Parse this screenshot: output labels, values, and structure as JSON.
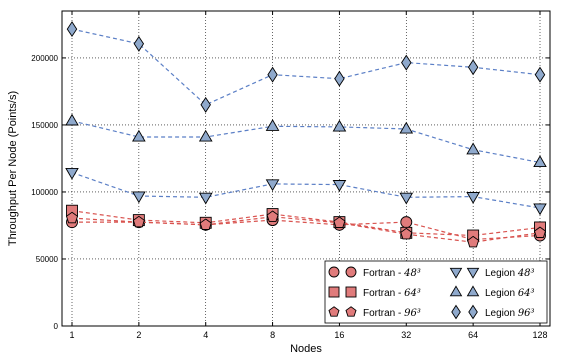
{
  "chart_data": {
    "type": "line",
    "xlabel": "Nodes",
    "ylabel": "Throughput Per Node (Points/s)",
    "x": [
      1,
      2,
      4,
      8,
      16,
      32,
      64,
      128
    ],
    "x_tick_labels": [
      "1",
      "2",
      "4",
      "8",
      "16",
      "32",
      "64",
      "128"
    ],
    "x_scale": "log2",
    "ylim": [
      0,
      235000
    ],
    "y_ticks": [
      0,
      50000,
      100000,
      150000,
      200000
    ],
    "y_tick_labels": [
      "0",
      "50000",
      "100000",
      "150000",
      "200000"
    ],
    "grid": true,
    "legend_position": "bottom-right",
    "legend_columns": 2,
    "colors": {
      "fortran_fill": "#e07b7b",
      "fortran_line": "#d9534f",
      "legion_fill": "#8fa9cc",
      "legion_line": "#5b7fc6",
      "marker_edge": "#000000"
    },
    "series": [
      {
        "name": "Fortran - 48³",
        "label_text": "Fortran - ",
        "label_exp": "48³",
        "family": "fortran",
        "marker": "circle",
        "values": [
          77500,
          77500,
          75500,
          79000,
          75500,
          77500,
          64500,
          67500
        ]
      },
      {
        "name": "Fortran - 64³",
        "label_text": "Fortran - ",
        "label_exp": "64³",
        "family": "fortran",
        "marker": "square",
        "values": [
          86000,
          79000,
          77000,
          83500,
          77500,
          69500,
          67500,
          73500
        ]
      },
      {
        "name": "Fortran - 96³",
        "label_text": "Fortran - ",
        "label_exp": "96³",
        "family": "fortran",
        "marker": "pentagon",
        "values": [
          80500,
          77500,
          75500,
          81500,
          77000,
          68500,
          62500,
          69500
        ]
      },
      {
        "name": "Legion 48³",
        "label_text": "Legion ",
        "label_exp": "48³",
        "family": "legion",
        "marker": "triangle-down",
        "values": [
          114500,
          97000,
          96000,
          106000,
          105500,
          96000,
          96500,
          88000
        ]
      },
      {
        "name": "Legion 64³",
        "label_text": "Legion ",
        "label_exp": "64³",
        "family": "legion",
        "marker": "triangle-up",
        "values": [
          153000,
          141000,
          141000,
          149000,
          148500,
          147000,
          131500,
          122000
        ]
      },
      {
        "name": "Legion 96³",
        "label_text": "Legion ",
        "label_exp": "96³",
        "family": "legion",
        "marker": "diamond",
        "values": [
          221500,
          210500,
          165000,
          187500,
          184500,
          196500,
          193000,
          187500
        ]
      }
    ]
  }
}
